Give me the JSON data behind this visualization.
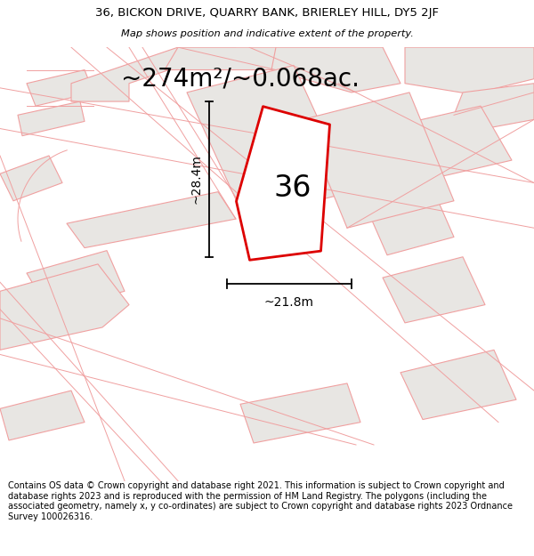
{
  "title_line1": "36, BICKON DRIVE, QUARRY BANK, BRIERLEY HILL, DY5 2JF",
  "title_line2": "Map shows position and indicative extent of the property.",
  "area_label": "~274m²/~0.068ac.",
  "property_number": "36",
  "dim_width": "~21.8m",
  "dim_height": "~28.4m",
  "footer_text": "Contains OS data © Crown copyright and database right 2021. This information is subject to Crown copyright and database rights 2023 and is reproduced with the permission of HM Land Registry. The polygons (including the associated geometry, namely x, y co-ordinates) are subject to Crown copyright and database rights 2023 Ordnance Survey 100026316.",
  "bg_color": "#ffffff",
  "plot_fill": "#ffffff",
  "plot_outline": "#dd0000",
  "nearby_fill": "#e8e6e3",
  "nearby_outline": "#f0a0a0",
  "road_line_color": "#f0a0a0",
  "title_fontsize": 9.5,
  "area_fontsize": 20,
  "number_fontsize": 24,
  "footer_fontsize": 7,
  "dim_fontsize": 10
}
